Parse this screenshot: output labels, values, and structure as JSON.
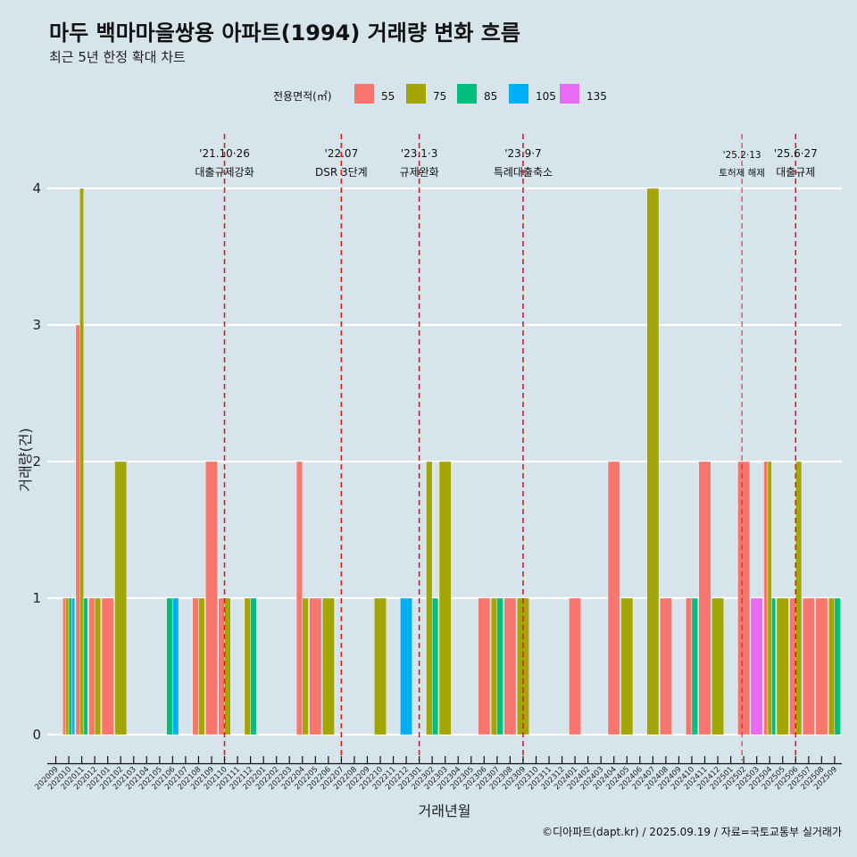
{
  "title": "마두 백마마을쌍용 아파트(1994) 거래량 변화 흐름",
  "subtitle": "최근 5년 한정 확대 차트",
  "caption": "©디아파트(dapt.kr) / 2025.09.19 / 자료=국토교통부 실거래가",
  "chart_data": {
    "type": "bar",
    "xlabel": "거래년월",
    "ylabel": "거래량(건)",
    "ylim": [
      0,
      4
    ],
    "yticks": [
      "0",
      "1",
      "2",
      "3",
      "4"
    ],
    "grid": true,
    "legend": {
      "title": "전용면적(㎡)",
      "placement": "top"
    },
    "categories": [
      "202009",
      "202010",
      "202011",
      "202012",
      "202101",
      "202102",
      "202103",
      "202104",
      "202105",
      "202106",
      "202107",
      "202108",
      "202109",
      "202110",
      "202111",
      "202112",
      "202201",
      "202202",
      "202203",
      "202204",
      "202205",
      "202206",
      "202207",
      "202208",
      "202209",
      "202210",
      "202211",
      "202212",
      "202301",
      "202302",
      "202303",
      "202304",
      "202305",
      "202306",
      "202307",
      "202308",
      "202309",
      "202310",
      "202311",
      "202312",
      "202401",
      "202402",
      "202403",
      "202404",
      "202405",
      "202406",
      "202407",
      "202408",
      "202409",
      "202410",
      "202411",
      "202412",
      "202501",
      "202502",
      "202503",
      "202504",
      "202505",
      "202506",
      "202507",
      "202508",
      "202509"
    ],
    "series": [
      {
        "name": "55",
        "color": "#F8766D",
        "values": {
          "202010": 1,
          "202011": 3,
          "202012": 1,
          "202101": 1,
          "202108": 1,
          "202109": 2,
          "202110": 1,
          "202204": 2,
          "202205": 1,
          "202306": 1,
          "202308": 1,
          "202401": 1,
          "202404": 2,
          "202408": 1,
          "202410": 1,
          "202411": 2,
          "202502": 2,
          "202504": 2,
          "202506": 1,
          "202507": 1,
          "202508": 1
        }
      },
      {
        "name": "75",
        "color": "#A3A500",
        "values": {
          "202010": 1,
          "202011": 4,
          "202012": 1,
          "202102": 2,
          "202108": 1,
          "202110": 1,
          "202112": 1,
          "202204": 1,
          "202206": 1,
          "202210": 1,
          "202302": 2,
          "202303": 2,
          "202307": 1,
          "202309": 1,
          "202405": 1,
          "202407": 4,
          "202412": 1,
          "202504": 2,
          "202505": 1,
          "202506": 2,
          "202509": 1
        }
      },
      {
        "name": "85",
        "color": "#00BF7D",
        "values": {
          "202010": 1,
          "202011": 1,
          "202106": 1,
          "202112": 1,
          "202302": 1,
          "202307": 1,
          "202410": 1,
          "202504": 1,
          "202509": 1
        }
      },
      {
        "name": "105",
        "color": "#00B0F6",
        "values": {
          "202010": 1,
          "202106": 1,
          "202212": 1
        }
      },
      {
        "name": "135",
        "color": "#E76BF3",
        "values": {
          "202503": 1
        }
      }
    ],
    "annotations": [
      {
        "at": "202110",
        "date": "'21.10·26",
        "label": "대출규제강화",
        "small": false
      },
      {
        "at": "202207",
        "date": "'22.07",
        "label": "DSR 3단계",
        "small": false
      },
      {
        "at": "202301",
        "date": "'23.1·3",
        "label": "규제완화",
        "small": false
      },
      {
        "at": "202309",
        "date": "'23.9·7",
        "label": "특례대출축소",
        "small": false
      },
      {
        "at": "202502",
        "date": "'25.2·13",
        "label": "토허제 해제",
        "small": true
      },
      {
        "at": "202506",
        "date": "'25.6·27",
        "label": "대출규제",
        "small": false
      }
    ],
    "line_color": "#E41A1C"
  }
}
